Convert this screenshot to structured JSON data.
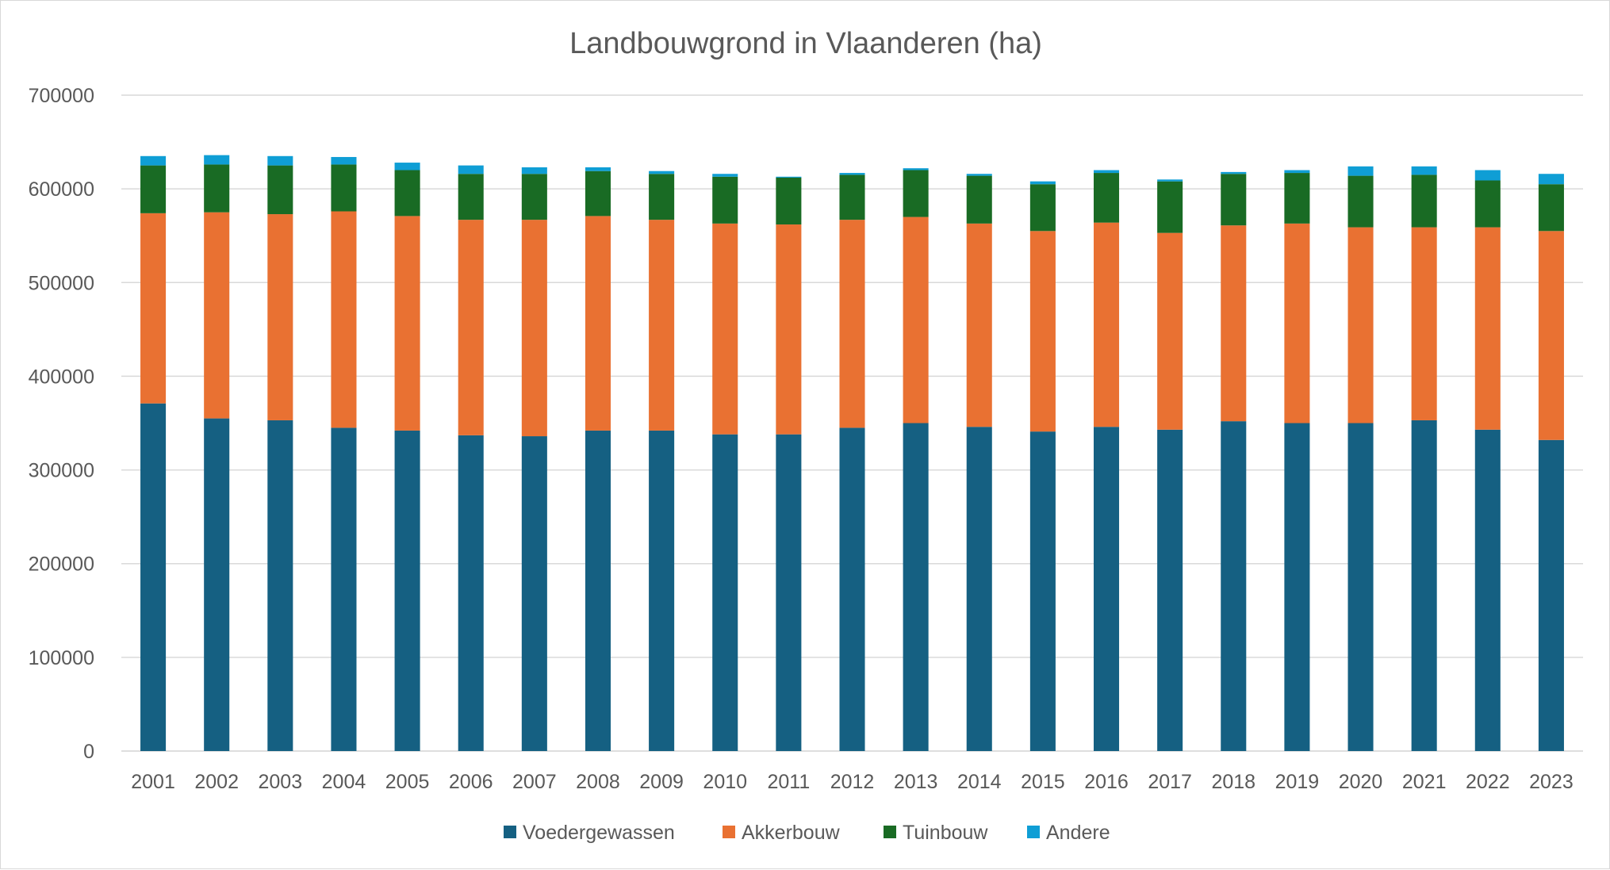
{
  "chart_data": {
    "type": "bar",
    "stacked": true,
    "title": "Landbouwgrond in Vlaanderen (ha)",
    "xlabel": "",
    "ylabel": "",
    "ylim": [
      0,
      700000
    ],
    "yticks": [
      "0",
      "100000",
      "200000",
      "300000",
      "400000",
      "500000",
      "600000",
      "700000"
    ],
    "grid": true,
    "legend": "bottom",
    "categories": [
      "2001",
      "2002",
      "2003",
      "2004",
      "2005",
      "2006",
      "2007",
      "2008",
      "2009",
      "2010",
      "2011",
      "2012",
      "2013",
      "2014",
      "2015",
      "2016",
      "2017",
      "2018",
      "2019",
      "2020",
      "2021",
      "2022",
      "2023"
    ],
    "series": [
      {
        "name": "Voedergewassen",
        "color": "#156082",
        "values": [
          371000,
          355000,
          353000,
          345000,
          342000,
          337000,
          336000,
          342000,
          342000,
          338000,
          338000,
          345000,
          350000,
          346000,
          341000,
          346000,
          343000,
          352000,
          350000,
          350000,
          353000,
          343000,
          332000
        ]
      },
      {
        "name": "Akkerbouw",
        "color": "#E97132",
        "values": [
          203000,
          220000,
          220000,
          231000,
          229000,
          230000,
          231000,
          229000,
          225000,
          225000,
          224000,
          222000,
          220000,
          217000,
          214000,
          218000,
          210000,
          209000,
          213000,
          209000,
          206000,
          216000,
          223000
        ]
      },
      {
        "name": "Tuinbouw",
        "color": "#196B24",
        "values": [
          51000,
          51000,
          52000,
          50000,
          49000,
          49000,
          49000,
          48000,
          49000,
          50000,
          50000,
          48000,
          50000,
          51000,
          50000,
          53000,
          55000,
          55000,
          54000,
          55000,
          56000,
          50000,
          50000
        ]
      },
      {
        "name": "Andere",
        "color": "#0F9ED5",
        "values": [
          10000,
          10000,
          10000,
          8000,
          8000,
          9000,
          7000,
          4000,
          3000,
          3000,
          1000,
          2000,
          2000,
          2000,
          3000,
          3000,
          2000,
          2000,
          3000,
          10000,
          9000,
          11000,
          11000
        ]
      }
    ]
  }
}
